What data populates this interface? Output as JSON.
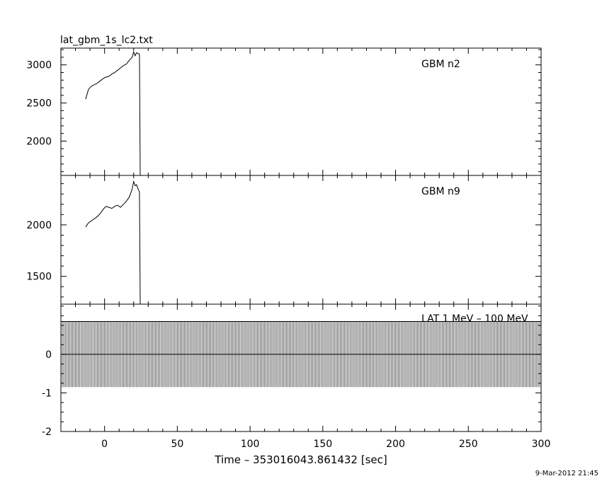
{
  "title": "lat_gbm_1s_lc2.txt",
  "timestamp": "9-Mar-2012 21:45",
  "chart_data": [
    {
      "type": "line",
      "panel": "top",
      "label": "GBM n2",
      "xlim": [
        -30,
        300
      ],
      "ylim": [
        1550,
        3220
      ],
      "yticks": [
        2000,
        2500,
        3000
      ],
      "series": [
        {
          "x": [
            -13,
            -11,
            -9,
            -7,
            -5,
            -3,
            -1,
            1,
            3,
            5,
            7,
            9,
            11,
            13,
            15,
            17,
            19,
            20,
            21,
            22,
            23,
            24,
            24.5
          ],
          "y": [
            2550,
            2680,
            2720,
            2740,
            2760,
            2790,
            2820,
            2840,
            2850,
            2880,
            2900,
            2930,
            2960,
            2990,
            3010,
            3060,
            3100,
            3170,
            3120,
            3160,
            3150,
            3140,
            1550
          ]
        }
      ]
    },
    {
      "type": "line",
      "panel": "middle",
      "label": "GBM n9",
      "xlim": [
        -30,
        300
      ],
      "ylim": [
        1230,
        2480
      ],
      "yticks": [
        1500,
        2000
      ],
      "series": [
        {
          "x": [
            -13,
            -11,
            -9,
            -7,
            -5,
            -3,
            -1,
            1,
            3,
            5,
            7,
            9,
            11,
            13,
            15,
            17,
            19,
            20,
            21,
            22,
            23,
            24,
            24.5
          ],
          "y": [
            1980,
            2020,
            2040,
            2060,
            2080,
            2110,
            2150,
            2180,
            2170,
            2160,
            2180,
            2190,
            2170,
            2200,
            2230,
            2270,
            2350,
            2420,
            2380,
            2390,
            2350,
            2320,
            1230
          ]
        }
      ]
    },
    {
      "type": "bar",
      "panel": "bottom",
      "label": "LAT 1 MeV – 100 MeV",
      "xlim": [
        -30,
        300
      ],
      "ylim": [
        -2,
        1.3
      ],
      "yticks": [
        -2,
        -1,
        0
      ],
      "band": [
        -0.85,
        0.85
      ],
      "values_zero": 0
    }
  ],
  "xaxis": {
    "label": "Time – 353016043.861432 [sec]",
    "ticks": [
      0,
      50,
      100,
      150,
      200,
      250,
      300
    ]
  }
}
